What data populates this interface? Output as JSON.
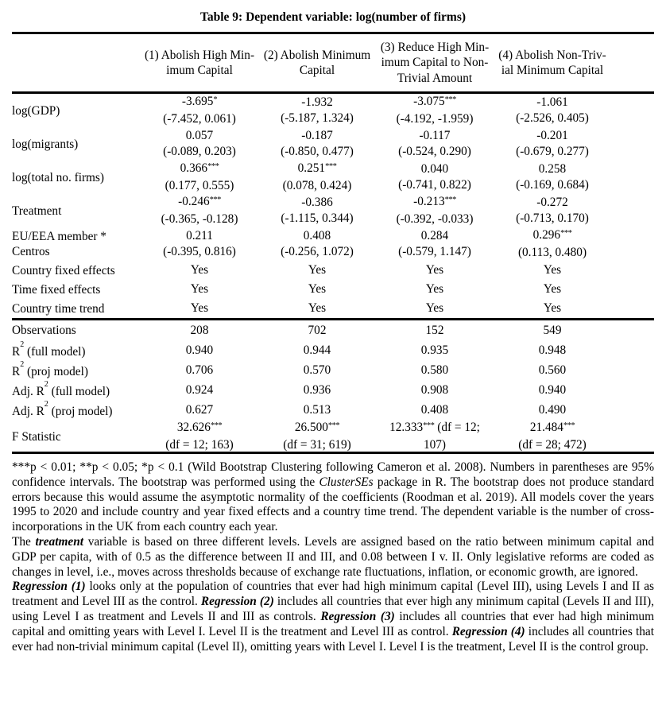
{
  "title": "Table 9: Dependent variable: log(number of firms)",
  "table": {
    "headers": [
      {
        "l1": "(1) Abolish High Min-",
        "l2": "imum Capital"
      },
      {
        "l1": "(2) Abolish Minimum",
        "l2": "Capital"
      },
      {
        "l1": "(3) Reduce High Min-",
        "l2": "imum Capital to Non-",
        "l3": "Trivial Amount"
      },
      {
        "l1": "(4) Abolish Non-Triv-",
        "l2": "ial Minimum Capital"
      }
    ],
    "rows": [
      {
        "label": {
          "a": "log(GDP)"
        },
        "cells": [
          {
            "v": "-3.695",
            "sup": "*",
            "ci": "(-7.452, 0.061)"
          },
          {
            "v": "-1.932",
            "ci": "(-5.187, 1.324)"
          },
          {
            "v": "-3.075",
            "sup": "***",
            "ci": "(-4.192, -1.959)"
          },
          {
            "v": "-1.061",
            "ci": "(-2.526, 0.405)"
          }
        ]
      },
      {
        "label": {
          "a": "log(migrants)"
        },
        "cells": [
          {
            "v": "0.057",
            "ci": "(-0.089, 0.203)"
          },
          {
            "v": "-0.187",
            "ci": "(-0.850, 0.477)"
          },
          {
            "v": "-0.117",
            "ci": "(-0.524, 0.290)"
          },
          {
            "v": "-0.201",
            "ci": "(-0.679, 0.277)"
          }
        ]
      },
      {
        "label": {
          "a": "log(total no. firms)"
        },
        "cells": [
          {
            "v": "0.366",
            "sup": "***",
            "ci": "(0.177, 0.555)"
          },
          {
            "v": "0.251",
            "sup": "***",
            "ci": "(0.078, 0.424)"
          },
          {
            "v": "0.040",
            "ci": "(-0.741, 0.822)"
          },
          {
            "v": "0.258",
            "ci": "(-0.169, 0.684)"
          }
        ]
      },
      {
        "label": {
          "a": "Treatment"
        },
        "cells": [
          {
            "v": "-0.246",
            "sup": "***",
            "ci": "(-0.365, -0.128)"
          },
          {
            "v": "-0.386",
            "ci": "(-1.115, 0.344)"
          },
          {
            "v": "-0.213",
            "sup": "***",
            "ci": "(-0.392, -0.033)"
          },
          {
            "v": "-0.272",
            "ci": "(-0.713, 0.170)"
          }
        ]
      },
      {
        "label": {
          "a": "EU/EEA member * Centros"
        },
        "cells": [
          {
            "v": "0.211",
            "ci": "(-0.395, 0.816)"
          },
          {
            "v": "0.408",
            "ci": "(-0.256, 1.072)"
          },
          {
            "v": "0.284",
            "ci": "(-0.579, 1.147)"
          },
          {
            "v": "0.296",
            "sup": "***",
            "ci": "(0.113, 0.480)"
          }
        ]
      },
      {
        "label": {
          "a": "Country fixed effects"
        },
        "cells": [
          {
            "v": "Yes"
          },
          {
            "v": "Yes"
          },
          {
            "v": "Yes"
          },
          {
            "v": "Yes"
          }
        ]
      },
      {
        "label": {
          "a": "Time fixed effects"
        },
        "cells": [
          {
            "v": "Yes"
          },
          {
            "v": "Yes"
          },
          {
            "v": "Yes"
          },
          {
            "v": "Yes"
          }
        ]
      },
      {
        "label": {
          "a": "Country time trend"
        },
        "cells": [
          {
            "v": "Yes"
          },
          {
            "v": "Yes"
          },
          {
            "v": "Yes"
          },
          {
            "v": "Yes"
          }
        ]
      },
      {
        "label": {
          "a": "Observations"
        },
        "cells": [
          {
            "v": "208"
          },
          {
            "v": "702"
          },
          {
            "v": "152"
          },
          {
            "v": "549"
          }
        ]
      },
      {
        "label": {
          "a": "R",
          "sup": "2",
          "b": " (full model)"
        },
        "cells": [
          {
            "v": "0.940"
          },
          {
            "v": "0.944"
          },
          {
            "v": "0.935"
          },
          {
            "v": "0.948"
          }
        ]
      },
      {
        "label": {
          "a": "R",
          "sup": "2",
          "b": " (proj model)"
        },
        "cells": [
          {
            "v": "0.706"
          },
          {
            "v": "0.570"
          },
          {
            "v": "0.580"
          },
          {
            "v": "0.560"
          }
        ]
      },
      {
        "label": {
          "a": "Adj. R",
          "sup": "2",
          "b": " (full model)"
        },
        "cells": [
          {
            "v": "0.924"
          },
          {
            "v": "0.936"
          },
          {
            "v": "0.908"
          },
          {
            "v": "0.940"
          }
        ]
      },
      {
        "label": {
          "a": "Adj. R",
          "sup": "2",
          "b": " (proj model)"
        },
        "cells": [
          {
            "v": "0.627"
          },
          {
            "v": "0.513"
          },
          {
            "v": "0.408"
          },
          {
            "v": "0.490"
          }
        ]
      },
      {
        "label": {
          "a": "F Statistic"
        },
        "cells": [
          {
            "v": "32.626",
            "sup": "***",
            "ci": "(df = 12; 163)"
          },
          {
            "v": "26.500",
            "sup": "***",
            "ci": "(df = 31; 619)"
          },
          {
            "v": "12.333",
            "sup": "***",
            "tail": " (df = 12;",
            "ci": "107)"
          },
          {
            "v": "21.484",
            "sup": "***",
            "ci": "(df = 28; 472)"
          }
        ]
      }
    ]
  },
  "notes": {
    "p1": {
      "s0": "***p < 0.01; **p < 0.05; *p < 0.1 (Wild Bootstrap Clustering following Cameron et al. 2008). Numbers in parentheses are 95% confidence intervals. The bootstrap was performed using the ",
      "s1": "ClusterSEs",
      "s2": " package in R. The bootstrap does not produce standard errors because this would assume the asymptotic normality of the coefficients (Roodman et al. 2019). All models cover the years 1995 to 2020 and include country and year fixed effects and a country time trend. The dependent variable is the number of cross-incorporations in the UK from each country each year."
    },
    "p2": {
      "s0": "The ",
      "s1": "treatment",
      "s2": " variable is based on three different levels. Levels are assigned based on the ratio between minimum capital and GDP per capita, with of 0.5 as the difference between II and III, and 0.08 between I v. II. Only legislative reforms are coded as changes in level, i.e., moves across thresholds because of exchange rate fluctuations, inflation, or economic growth, are ignored."
    },
    "p3": {
      "s0": "Regression (1)",
      "s1": " looks only at the population of countries that ever had high minimum capital (Level III), using Levels I and II as treatment and Level III as the control. ",
      "s2": "Regression (2)",
      "s3": " includes all countries that ever high any minimum capital (Levels II and III), using Level I as treatment and Levels II and III as controls. ",
      "s4": "Regression (3)",
      "s5": " includes all countries that ever had high minimum capital and omitting years with Level I. Level II is the treatment and Level III as control. ",
      "s6": "Regression (4)",
      "s7": " includes all countries that ever had non-trivial minimum capital (Level II), omitting years with Level I. Level I is the treatment, Level II is the control group."
    }
  }
}
